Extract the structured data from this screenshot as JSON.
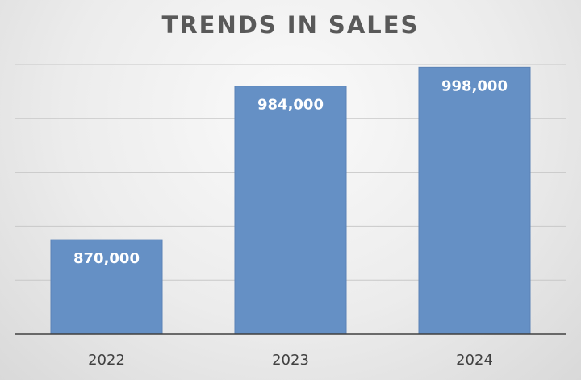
{
  "chart_data": {
    "type": "bar",
    "title": "TRENDS IN SALES",
    "xlabel": "",
    "ylabel": "",
    "categories": [
      "2022",
      "2023",
      "2024"
    ],
    "values": [
      870000,
      984000,
      998000
    ],
    "data_labels": [
      "870,000",
      "984,000",
      "998,000"
    ],
    "ylim": [
      800000,
      1000000
    ],
    "y_gridlines": [
      800000,
      840000,
      880000,
      920000,
      960000,
      1000000
    ],
    "grid": true,
    "legend": "none",
    "colors": {
      "bar": "#6590c5",
      "bar_edge": "#5a82b6",
      "grid": "#c8c8c8",
      "axis": "#404040"
    }
  }
}
